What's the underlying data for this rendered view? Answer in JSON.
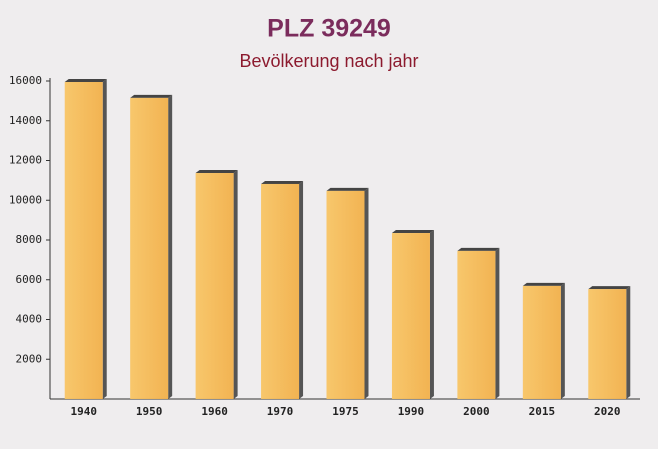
{
  "chart_data": {
    "type": "bar",
    "title": "PLZ 39249",
    "subtitle": "Bevölkerung nach jahr",
    "categories": [
      "1940",
      "1950",
      "1960",
      "1970",
      "1975",
      "1990",
      "2000",
      "2015",
      "2020"
    ],
    "values": [
      15950,
      15150,
      11370,
      10820,
      10470,
      8350,
      7450,
      5690,
      5530
    ],
    "color": "#f5b94f",
    "ylim": [
      0,
      16000
    ],
    "yticks": [
      2000,
      4000,
      6000,
      8000,
      10000,
      12000,
      14000,
      16000
    ],
    "grid": false
  }
}
